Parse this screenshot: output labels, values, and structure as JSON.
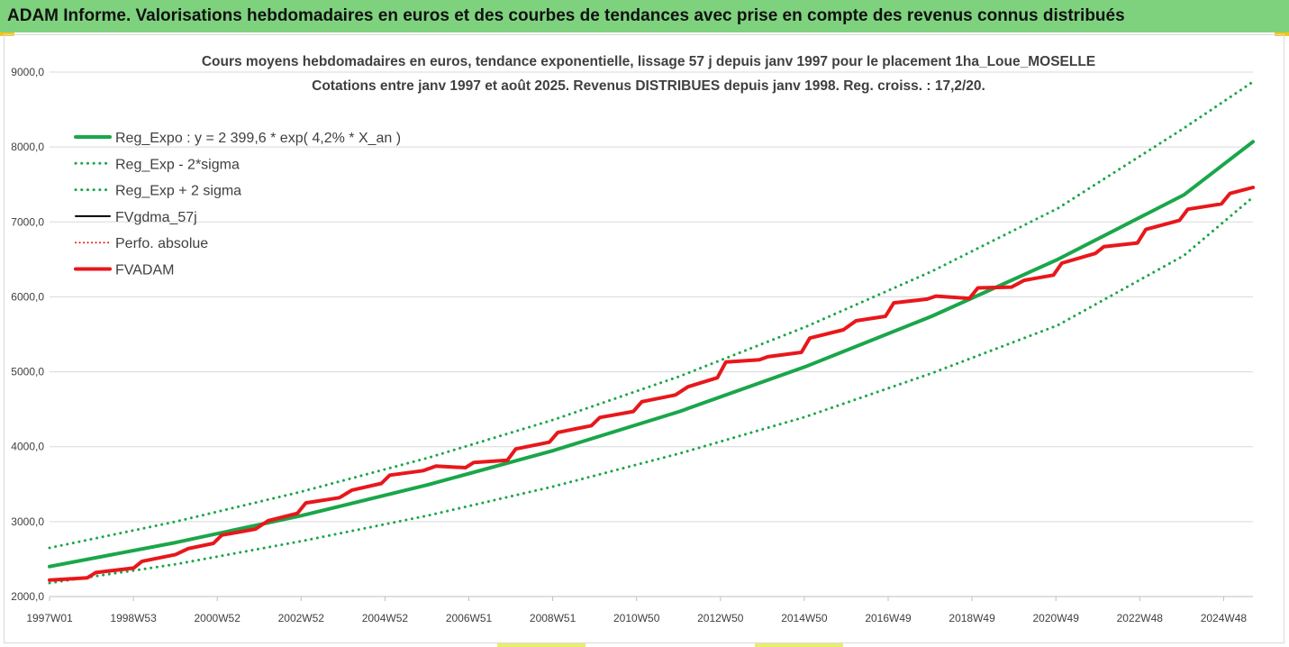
{
  "banner": {
    "title": "ADAM Informe. Valorisations hebdomadaires en euros et des courbes de tendances avec prise en compte des revenus connus distribués"
  },
  "colors": {
    "banner_bg": "#7ed27e",
    "trend_green": "#1aa64a",
    "red": "#e8171b",
    "black": "#000000"
  },
  "chart_data": {
    "type": "line",
    "title": "Cours moyens hebdomadaires en euros, tendance exponentielle, lissage 57 j depuis janv 1997  pour le placement 1ha_Loue_MOSELLE",
    "subtitle": "Cotations entre janv 1997 et août 2025. Revenus DISTRIBUES depuis janv 1998. Reg. croiss. : 17,2/20.",
    "x_tick_labels": [
      "1997W01",
      "1998W53",
      "2000W52",
      "2002W52",
      "2004W52",
      "2006W51",
      "2008W51",
      "2010W50",
      "2012W50",
      "2014W50",
      "2016W49",
      "2018W49",
      "2020W49",
      "2022W48",
      "2024W48"
    ],
    "x_range_years": [
      1997.0,
      2025.65
    ],
    "ylim": [
      2000,
      9000
    ],
    "y_ticks": [
      2000,
      3000,
      4000,
      5000,
      6000,
      7000,
      8000,
      9000
    ],
    "y_tick_labels": [
      "2000,0",
      "3000,0",
      "4000,0",
      "5000,0",
      "6000,0",
      "7000,0",
      "8000,0",
      "9000,0"
    ],
    "legend_position": "top-left",
    "grid": "horizontal",
    "series": [
      {
        "name": "Reg_Expo : y = 2 399,6 * exp( 4,2% *  X_an )",
        "color": "#1aa64a",
        "style": "solid",
        "width": 4,
        "x": [
          1997.0,
          2000.0,
          2003.0,
          2006.0,
          2009.0,
          2012.0,
          2015.0,
          2018.0,
          2021.0,
          2024.0,
          2025.65
        ],
        "y": [
          2400,
          2720,
          3080,
          3490,
          3950,
          4470,
          5070,
          5740,
          6500,
          7360,
          8070
        ]
      },
      {
        "name": "Reg_Exp - 2*sigma",
        "color": "#1aa64a",
        "style": "dotted",
        "width": 3,
        "x": [
          1997.0,
          2000.0,
          2003.0,
          2006.0,
          2009.0,
          2012.0,
          2015.0,
          2018.0,
          2021.0,
          2024.0,
          2025.65
        ],
        "y": [
          2180,
          2430,
          2740,
          3080,
          3470,
          3910,
          4400,
          4980,
          5620,
          6550,
          7330
        ]
      },
      {
        "name": "Reg_Exp + 2 sigma",
        "color": "#1aa64a",
        "style": "dotted",
        "width": 3,
        "x": [
          1997.0,
          2000.0,
          2003.0,
          2006.0,
          2009.0,
          2012.0,
          2015.0,
          2018.0,
          2021.0,
          2024.0,
          2025.65
        ],
        "y": [
          2650,
          3000,
          3400,
          3850,
          4360,
          4940,
          5600,
          6340,
          7180,
          8250,
          8870
        ]
      },
      {
        "name": "FVgdma_57j",
        "color": "#000000",
        "style": "solid",
        "width": 2,
        "x": [
          1997.0,
          1997.9,
          1998.1,
          1999.0,
          1999.2,
          2000.0,
          2000.3,
          2000.9,
          2001.1,
          2001.9,
          2002.2,
          2002.9,
          2003.1,
          2003.9,
          2004.2,
          2004.9,
          2005.1,
          2005.9,
          2006.2,
          2006.9,
          2007.1,
          2007.9,
          2008.1,
          2008.9,
          2009.1,
          2009.9,
          2010.1,
          2010.9,
          2011.1,
          2011.9,
          2012.2,
          2012.9,
          2013.1,
          2013.9,
          2014.1,
          2014.9,
          2015.1,
          2015.9,
          2016.2,
          2016.9,
          2017.1,
          2017.9,
          2018.1,
          2018.9,
          2019.1,
          2019.9,
          2020.2,
          2020.9,
          2021.1,
          2021.9,
          2022.1,
          2022.9,
          2023.1,
          2023.9,
          2024.1,
          2024.9,
          2025.1,
          2025.65
        ],
        "y": [
          2220,
          2250,
          2320,
          2380,
          2470,
          2560,
          2640,
          2710,
          2820,
          2900,
          3010,
          3110,
          3250,
          3320,
          3420,
          3510,
          3620,
          3680,
          3740,
          3720,
          3790,
          3820,
          3970,
          4060,
          4190,
          4280,
          4390,
          4470,
          4600,
          4690,
          4800,
          4920,
          5130,
          5160,
          5200,
          5260,
          5450,
          5560,
          5680,
          5740,
          5920,
          5970,
          6010,
          5980,
          6120,
          6130,
          6220,
          6290,
          6450,
          6580,
          6670,
          6720,
          6900,
          7020,
          7170,
          7240,
          7380,
          7460
        ]
      },
      {
        "name": "Perfo. absolue",
        "color": "#e8171b",
        "style": "dotted",
        "width": 2,
        "x": [],
        "y": []
      },
      {
        "name": "FVADAM",
        "color": "#e8171b",
        "style": "solid",
        "width": 4,
        "x": [
          1997.0,
          1997.9,
          1998.1,
          1999.0,
          1999.2,
          2000.0,
          2000.3,
          2000.9,
          2001.1,
          2001.9,
          2002.2,
          2002.9,
          2003.1,
          2003.9,
          2004.2,
          2004.9,
          2005.1,
          2005.9,
          2006.2,
          2006.9,
          2007.1,
          2007.9,
          2008.1,
          2008.9,
          2009.1,
          2009.9,
          2010.1,
          2010.9,
          2011.1,
          2011.9,
          2012.2,
          2012.9,
          2013.1,
          2013.9,
          2014.1,
          2014.9,
          2015.1,
          2015.9,
          2016.2,
          2016.9,
          2017.1,
          2017.9,
          2018.1,
          2018.9,
          2019.1,
          2019.9,
          2020.2,
          2020.9,
          2021.1,
          2021.9,
          2022.1,
          2022.9,
          2023.1,
          2023.9,
          2024.1,
          2024.9,
          2025.1,
          2025.65
        ],
        "y": [
          2220,
          2250,
          2320,
          2380,
          2470,
          2560,
          2640,
          2710,
          2820,
          2900,
          3010,
          3110,
          3250,
          3320,
          3420,
          3510,
          3620,
          3680,
          3740,
          3720,
          3790,
          3820,
          3970,
          4060,
          4190,
          4280,
          4390,
          4470,
          4600,
          4690,
          4800,
          4920,
          5130,
          5160,
          5200,
          5260,
          5450,
          5560,
          5680,
          5740,
          5920,
          5970,
          6010,
          5980,
          6120,
          6130,
          6220,
          6290,
          6450,
          6580,
          6670,
          6720,
          6900,
          7020,
          7170,
          7240,
          7380,
          7460
        ]
      }
    ]
  }
}
